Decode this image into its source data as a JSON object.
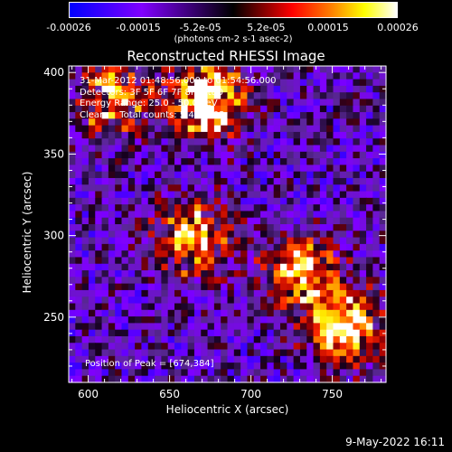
{
  "chart_data": {
    "type": "heatmap",
    "title": "Reconstructed RHESSI Image",
    "xlabel": "Heliocentric X (arcsec)",
    "ylabel": "Heliocentric Y (arcsec)",
    "xlim": [
      588,
      783
    ],
    "ylim": [
      210,
      404
    ],
    "x_ticks": [
      600,
      650,
      700,
      750
    ],
    "y_ticks": [
      250,
      300,
      350,
      400
    ],
    "colorbar": {
      "ticks": [
        "-0.00026",
        "-0.00015",
        "-5.2e-05",
        "5.2e-05",
        "0.00015",
        "0.00026"
      ],
      "tick_values": [
        -0.00026,
        -0.00015,
        -5.2e-05,
        5.2e-05,
        0.00015,
        0.00026
      ],
      "range": [
        -0.00026,
        0.00026
      ],
      "units": "(photons cm-2 s-1 asec-2)"
    },
    "colors": {
      "cb_low": "#0000ff",
      "cb_mid_low": "#8000ff",
      "cb_mid": "#000000",
      "cb_mid_high": "#ff0000",
      "cb_high": "#ffffff"
    },
    "hot_regions": [
      {
        "x": 672,
        "y": 384,
        "value": 0.00026
      },
      {
        "x": 664,
        "y": 298,
        "value": 0.0002
      },
      {
        "x": 758,
        "y": 245,
        "value": 0.00024
      },
      {
        "x": 615,
        "y": 383,
        "value": 0.00016
      },
      {
        "x": 730,
        "y": 278,
        "value": 0.00018
      }
    ],
    "annotations": {
      "time_range": "31-Mar-2012 01:48:56.000 to 01:54:56.000",
      "detectors": "Detectors: 3F 5F 6F 7F 8F  Att 0",
      "energy": "Energy Range: 25.0 - 50.0 keV",
      "clean": "Clean     Total counts: 5.49E+03",
      "peak": "Position of Peak = [674,384]"
    }
  },
  "footer": {
    "date": "9-May-2022 16:11"
  }
}
